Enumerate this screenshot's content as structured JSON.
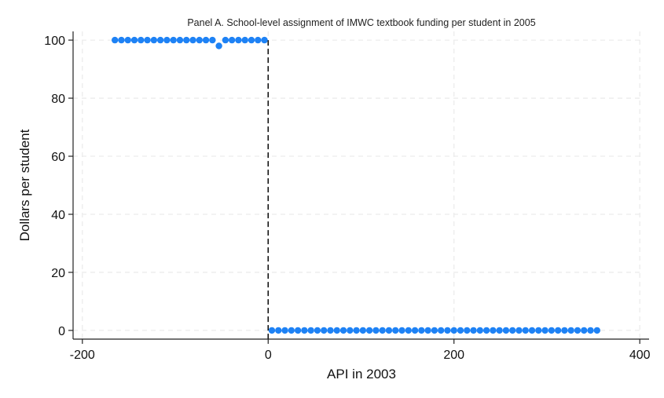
{
  "chart_data": {
    "type": "scatter",
    "title": "Panel A. School-level assignment of IMWC textbook funding per student in 2005",
    "xlabel": "API in 2003",
    "ylabel": "Dollars per student",
    "xlim": [
      -210,
      410
    ],
    "ylim": [
      -3,
      103
    ],
    "xticks": [
      -200,
      0,
      200,
      400
    ],
    "yticks": [
      0,
      20,
      40,
      60,
      80,
      100
    ],
    "grid": true,
    "cutoff_x": 0,
    "color": "#1e82f5",
    "series": [
      {
        "x": [
          -165,
          -158,
          -151,
          -144,
          -137,
          -130,
          -123,
          -116,
          -109,
          -102,
          -95,
          -88,
          -81,
          -74,
          -67,
          -60,
          -53,
          -46,
          -39,
          -32,
          -25,
          -18,
          -11,
          -4,
          4,
          11,
          18,
          25,
          32,
          39,
          46,
          53,
          60,
          67,
          74,
          81,
          88,
          95,
          102,
          109,
          116,
          123,
          130,
          137,
          144,
          151,
          158,
          165,
          172,
          179,
          186,
          193,
          200,
          207,
          214,
          221,
          228,
          235,
          242,
          249,
          256,
          263,
          270,
          277,
          284,
          291,
          298,
          305,
          312,
          319,
          326,
          333,
          340,
          347,
          354
        ],
        "y": [
          100,
          100,
          100,
          100,
          100,
          100,
          100,
          100,
          100,
          100,
          100,
          100,
          100,
          100,
          100,
          100,
          98,
          100,
          100,
          100,
          100,
          100,
          100,
          100,
          0,
          0,
          0,
          0,
          0,
          0,
          0,
          0,
          0,
          0,
          0,
          0,
          0,
          0,
          0,
          0,
          0,
          0,
          0,
          0,
          0,
          0,
          0,
          0,
          0,
          0,
          0,
          0,
          0,
          0,
          0,
          0,
          0,
          0,
          0,
          0,
          0,
          0,
          0,
          0,
          0,
          0,
          0,
          0,
          0,
          0,
          0,
          0,
          0,
          0,
          0
        ]
      }
    ]
  }
}
